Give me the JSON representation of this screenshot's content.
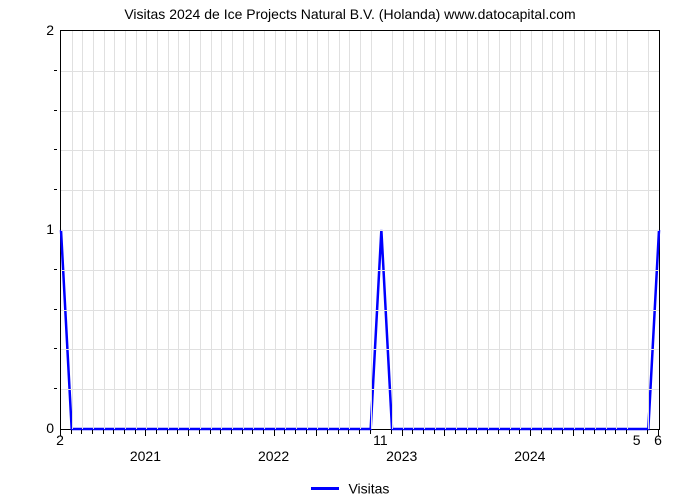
{
  "chart": {
    "type": "line",
    "title": "Visitas 2024 de Ice Projects Natural B.V. (Holanda) www.datocapital.com",
    "title_fontsize": 14,
    "title_color": "#000000",
    "background_color": "#ffffff",
    "plot_border_color": "#000000",
    "grid_color": "#e0e0e0",
    "line_color": "#0000ff",
    "line_width": 2.5,
    "ylim": [
      0,
      2
    ],
    "y_ticks": [
      0,
      1,
      2
    ],
    "y_minor_count_between": 4,
    "y_tick_label_fontsize": 14,
    "x_index_range": [
      0,
      56
    ],
    "x_year_labels": [
      {
        "label": "2021",
        "index": 8
      },
      {
        "label": "2022",
        "index": 20
      },
      {
        "label": "2023",
        "index": 32
      },
      {
        "label": "2024",
        "index": 44
      }
    ],
    "x_value_labels_top_of_axis": [
      {
        "label": "2",
        "index": 0
      },
      {
        "label": "11",
        "index": 30
      },
      {
        "label": "5",
        "index": 54
      },
      {
        "label": "6",
        "index": 56
      }
    ],
    "x_month_minor_tick_indices": [
      1,
      2,
      3,
      4,
      5,
      6,
      7,
      9,
      10,
      11,
      13,
      14,
      15,
      16,
      17,
      18,
      19,
      21,
      22,
      23,
      25,
      26,
      27,
      28,
      29,
      31,
      33,
      34,
      35,
      37,
      38,
      39,
      40,
      41,
      42,
      43,
      45,
      46,
      47,
      49,
      50,
      51,
      52,
      53,
      55
    ],
    "x_major_tick_indices": [
      0,
      8,
      12,
      20,
      24,
      32,
      36,
      44,
      48,
      56
    ],
    "series": {
      "name": "Visitas",
      "x_index": [
        0,
        1,
        2,
        3,
        4,
        5,
        6,
        7,
        8,
        9,
        10,
        11,
        12,
        13,
        14,
        15,
        16,
        17,
        18,
        19,
        20,
        21,
        22,
        23,
        24,
        25,
        26,
        27,
        28,
        29,
        30,
        31,
        32,
        33,
        34,
        35,
        36,
        37,
        38,
        39,
        40,
        41,
        42,
        43,
        44,
        45,
        46,
        47,
        48,
        49,
        50,
        51,
        52,
        53,
        54,
        55,
        56
      ],
      "y": [
        1,
        0,
        0,
        0,
        0,
        0,
        0,
        0,
        0,
        0,
        0,
        0,
        0,
        0,
        0,
        0,
        0,
        0,
        0,
        0,
        0,
        0,
        0,
        0,
        0,
        0,
        0,
        0,
        0,
        0,
        1,
        0,
        0,
        0,
        0,
        0,
        0,
        0,
        0,
        0,
        0,
        0,
        0,
        0,
        0,
        0,
        0,
        0,
        0,
        0,
        0,
        0,
        0,
        0,
        0,
        0,
        1
      ]
    },
    "legend": {
      "label": "Visitas",
      "swatch_color": "#0000ff",
      "position": "bottom-center",
      "fontsize": 14
    }
  }
}
